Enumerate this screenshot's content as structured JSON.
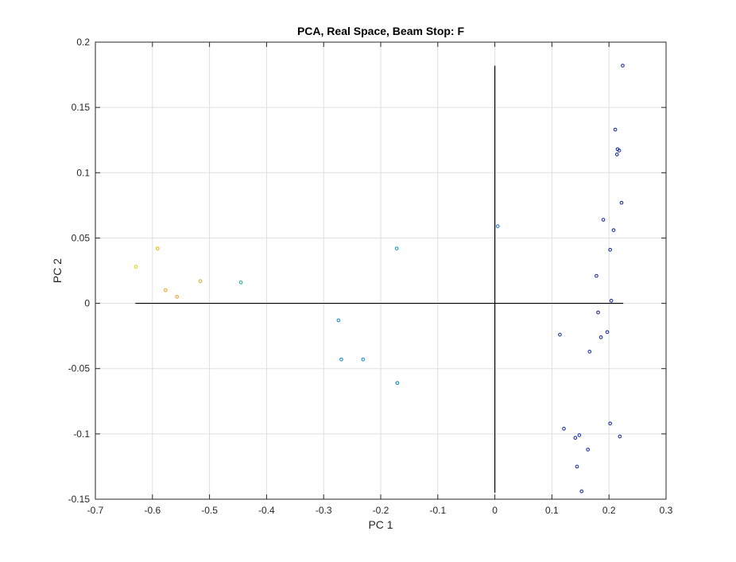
{
  "chart_data": {
    "type": "scatter",
    "title": "PCA, Real Space, Beam Stop: F",
    "xlabel": "PC 1",
    "ylabel": "PC 2",
    "xlim": [
      -0.7,
      0.3
    ],
    "ylim": [
      -0.15,
      0.2
    ],
    "xticks": [
      "-0.7",
      "-0.6",
      "-0.5",
      "-0.4",
      "-0.3",
      "-0.2",
      "-0.1",
      "0",
      "0.1",
      "0.2",
      "0.3"
    ],
    "yticks": [
      "-0.15",
      "-0.1",
      "-0.05",
      "0",
      "0.05",
      "0.1",
      "0.15",
      "0.2"
    ],
    "grid": true,
    "points": [
      {
        "x": -0.629,
        "y": 0.028,
        "color": "#e6d21e"
      },
      {
        "x": -0.591,
        "y": 0.042,
        "color": "#f2b21e"
      },
      {
        "x": -0.577,
        "y": 0.01,
        "color": "#f5a030"
      },
      {
        "x": -0.557,
        "y": 0.005,
        "color": "#f0a03a"
      },
      {
        "x": -0.516,
        "y": 0.017,
        "color": "#d0b040"
      },
      {
        "x": -0.445,
        "y": 0.016,
        "color": "#30b090"
      },
      {
        "x": -0.274,
        "y": -0.013,
        "color": "#1e90c8"
      },
      {
        "x": -0.269,
        "y": -0.043,
        "color": "#1e90c8"
      },
      {
        "x": -0.231,
        "y": -0.043,
        "color": "#1e90c8"
      },
      {
        "x": -0.172,
        "y": 0.042,
        "color": "#1e9cd2"
      },
      {
        "x": -0.171,
        "y": -0.061,
        "color": "#1e84c8"
      },
      {
        "x": 0.005,
        "y": 0.059,
        "color": "#2878c8"
      },
      {
        "x": 0.114,
        "y": -0.024,
        "color": "#1e3ca0"
      },
      {
        "x": 0.121,
        "y": -0.096,
        "color": "#1e3ca0"
      },
      {
        "x": 0.141,
        "y": -0.103,
        "color": "#1e32a0"
      },
      {
        "x": 0.144,
        "y": -0.125,
        "color": "#1e32a0"
      },
      {
        "x": 0.148,
        "y": -0.101,
        "color": "#1e32a0"
      },
      {
        "x": 0.152,
        "y": -0.144,
        "color": "#1e32a0"
      },
      {
        "x": 0.163,
        "y": -0.112,
        "color": "#1e32a0"
      },
      {
        "x": 0.166,
        "y": -0.037,
        "color": "#1e32a0"
      },
      {
        "x": 0.178,
        "y": 0.021,
        "color": "#1e32a0"
      },
      {
        "x": 0.181,
        "y": -0.007,
        "color": "#1e32a0"
      },
      {
        "x": 0.186,
        "y": -0.026,
        "color": "#1e32a0"
      },
      {
        "x": 0.19,
        "y": 0.064,
        "color": "#1e32a0"
      },
      {
        "x": 0.197,
        "y": -0.022,
        "color": "#1e32a0"
      },
      {
        "x": 0.202,
        "y": 0.041,
        "color": "#1e32a0"
      },
      {
        "x": 0.202,
        "y": -0.092,
        "color": "#1e32a0"
      },
      {
        "x": 0.204,
        "y": 0.002,
        "color": "#1e32a0"
      },
      {
        "x": 0.208,
        "y": 0.056,
        "color": "#1e32a0"
      },
      {
        "x": 0.211,
        "y": 0.133,
        "color": "#1e32a0"
      },
      {
        "x": 0.214,
        "y": 0.114,
        "color": "#1e32a0"
      },
      {
        "x": 0.215,
        "y": 0.118,
        "color": "#1e32a0"
      },
      {
        "x": 0.218,
        "y": 0.117,
        "color": "#1e32a0"
      },
      {
        "x": 0.219,
        "y": -0.102,
        "color": "#1e32a0"
      },
      {
        "x": 0.222,
        "y": 0.077,
        "color": "#1e32a0"
      },
      {
        "x": 0.224,
        "y": 0.182,
        "color": "#1e32a0"
      }
    ],
    "reference_lines": [
      {
        "x": [
          -0.63,
          0.225
        ],
        "y": [
          0,
          0
        ]
      },
      {
        "x": [
          0,
          0
        ],
        "y": [
          -0.145,
          0.182
        ]
      }
    ]
  }
}
